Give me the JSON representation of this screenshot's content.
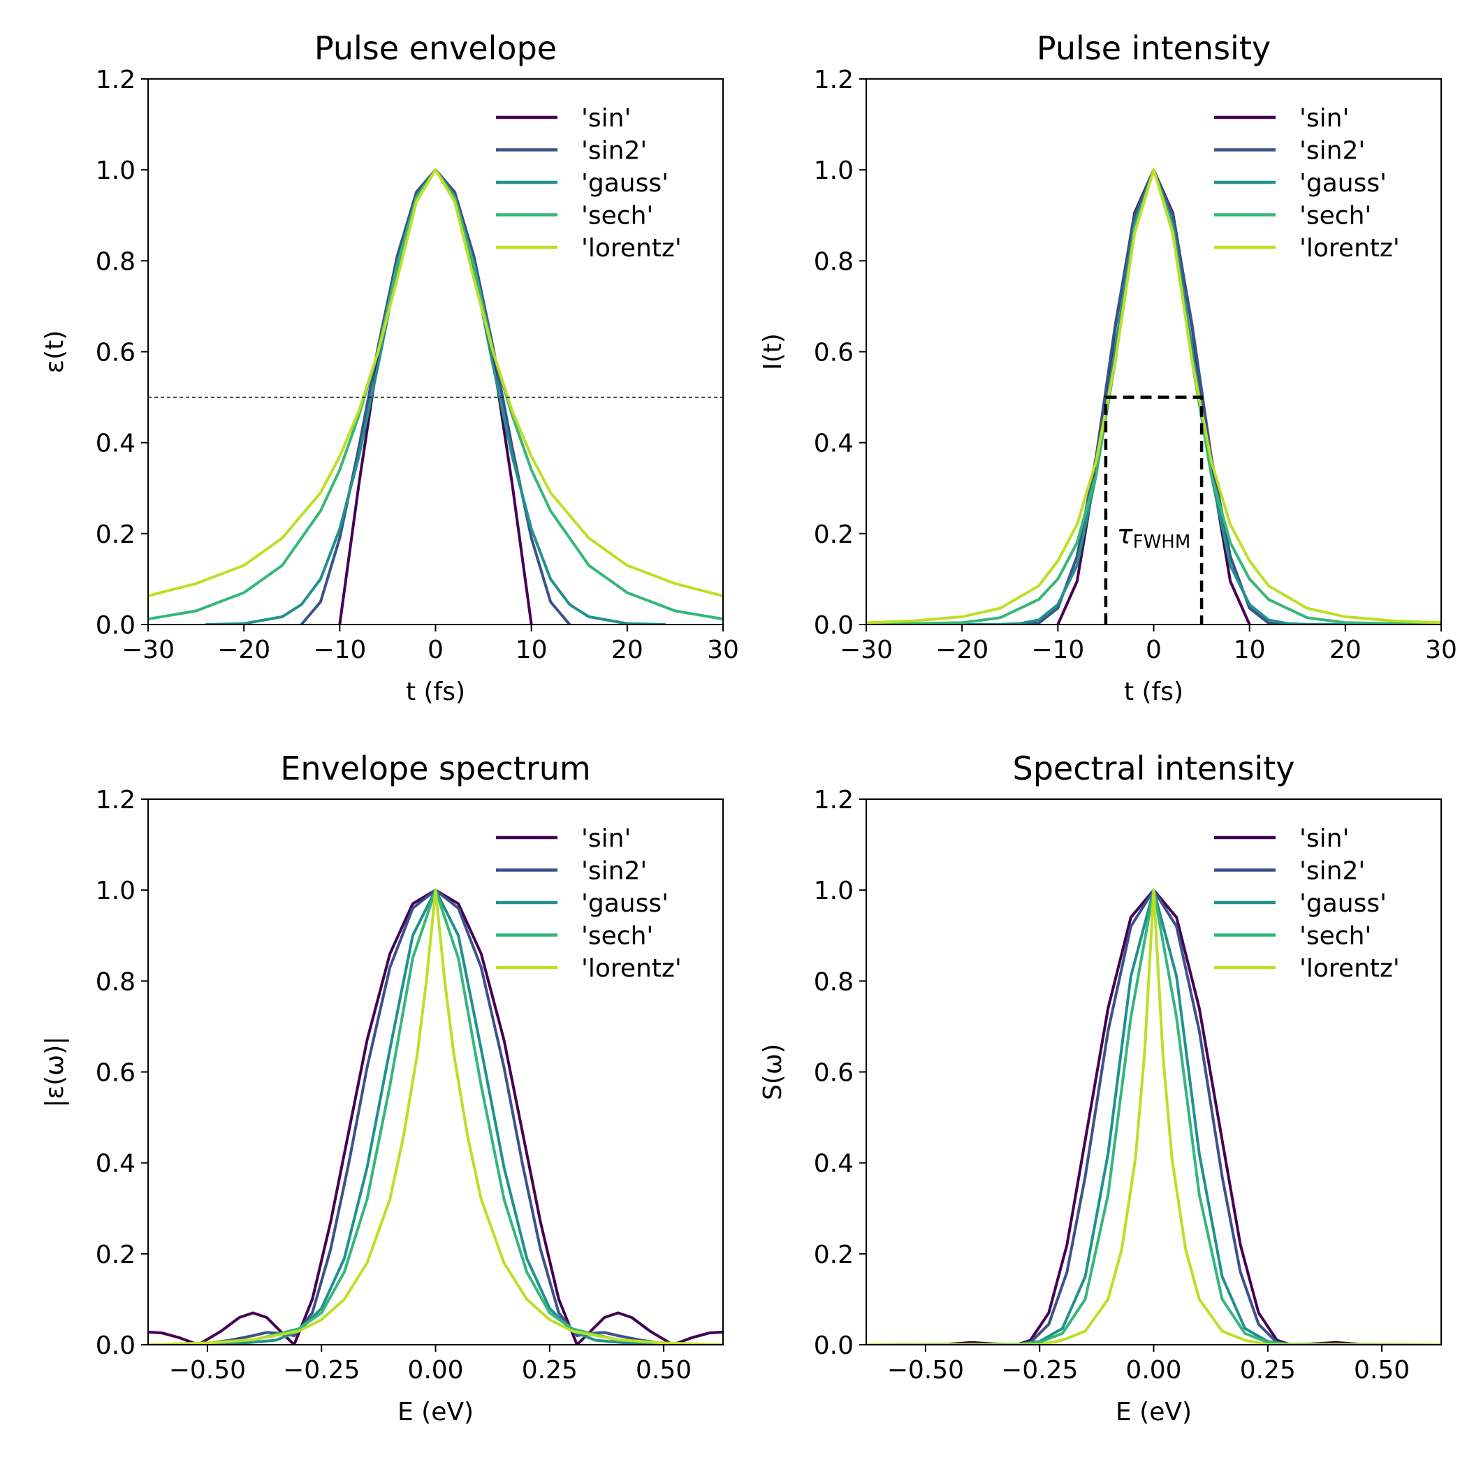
{
  "colors": {
    "sin": "#440154",
    "sin2": "#3b528b",
    "gauss": "#21918c",
    "sech": "#35b779",
    "lorentz": "#bddf26",
    "reference": "#000000"
  },
  "chart_data": [
    {
      "type": "line",
      "title": "Pulse envelope",
      "xlabel": "t (fs)",
      "ylabel": "ε(t)",
      "xlim": [
        -30,
        30
      ],
      "ylim": [
        0,
        1.2
      ],
      "xticks": [
        -30,
        -20,
        -10,
        0,
        10,
        20,
        30
      ],
      "xtick_labels": [
        "−30",
        "−20",
        "−10",
        "0",
        "10",
        "20",
        "30"
      ],
      "yticks": [
        0,
        0.2,
        0.4,
        0.6,
        0.8,
        1.0,
        1.2
      ],
      "ytick_labels": [
        "0.0",
        "0.2",
        "0.4",
        "0.6",
        "0.8",
        "1.0",
        "1.2"
      ],
      "legend": "top-right",
      "grid": false,
      "series": [
        {
          "name": "'sin'",
          "key": "sin",
          "x": [
            -10,
            -8,
            -6,
            -4,
            -2,
            0,
            2,
            4,
            6,
            8,
            10
          ],
          "y": [
            0,
            0.309,
            0.588,
            0.809,
            0.951,
            1,
            0.951,
            0.809,
            0.588,
            0.309,
            0
          ]
        },
        {
          "name": "'sin2'",
          "key": "sin2",
          "x": [
            -14,
            -12,
            -10,
            -8,
            -6,
            -4,
            -2,
            0,
            2,
            4,
            6,
            8,
            10,
            12,
            14
          ],
          "y": [
            0,
            0.05,
            0.19,
            0.39,
            0.61,
            0.81,
            0.95,
            1,
            0.95,
            0.81,
            0.61,
            0.39,
            0.19,
            0.05,
            0
          ]
        },
        {
          "name": "'gauss'",
          "key": "gauss",
          "x": [
            -24,
            -20,
            -16,
            -14,
            -12,
            -10,
            -8,
            -6,
            -4,
            -2,
            0,
            2,
            4,
            6,
            8,
            10,
            12,
            14,
            16,
            20,
            24
          ],
          "y": [
            0.0,
            0.002,
            0.017,
            0.044,
            0.1,
            0.21,
            0.37,
            0.57,
            0.78,
            0.94,
            1,
            0.94,
            0.78,
            0.57,
            0.37,
            0.21,
            0.1,
            0.044,
            0.017,
            0.002,
            0.0
          ]
        },
        {
          "name": "'sech'",
          "key": "sech",
          "x": [
            -30,
            -25,
            -20,
            -16,
            -12,
            -10,
            -8,
            -6,
            -4,
            -2,
            0,
            2,
            4,
            6,
            8,
            10,
            12,
            16,
            20,
            25,
            30
          ],
          "y": [
            0.012,
            0.03,
            0.07,
            0.13,
            0.25,
            0.34,
            0.46,
            0.6,
            0.79,
            0.94,
            1,
            0.94,
            0.79,
            0.6,
            0.46,
            0.34,
            0.25,
            0.13,
            0.07,
            0.03,
            0.012
          ]
        },
        {
          "name": "'lorentz'",
          "key": "lorentz",
          "x": [
            -30,
            -25,
            -20,
            -16,
            -12,
            -10,
            -8,
            -6,
            -4,
            -2,
            0,
            2,
            4,
            6,
            8,
            10,
            12,
            16,
            20,
            25,
            30
          ],
          "y": [
            0.063,
            0.09,
            0.13,
            0.19,
            0.29,
            0.37,
            0.47,
            0.6,
            0.76,
            0.93,
            1,
            0.93,
            0.76,
            0.6,
            0.47,
            0.37,
            0.29,
            0.19,
            0.13,
            0.09,
            0.063
          ]
        }
      ],
      "hline": {
        "y": 0.5,
        "style": "dashed thin"
      }
    },
    {
      "type": "line",
      "title": "Pulse intensity",
      "xlabel": "t (fs)",
      "ylabel": "I(t)",
      "xlim": [
        -30,
        30
      ],
      "ylim": [
        0,
        1.2
      ],
      "xticks": [
        -30,
        -20,
        -10,
        0,
        10,
        20,
        30
      ],
      "xtick_labels": [
        "−30",
        "−20",
        "−10",
        "0",
        "10",
        "20",
        "30"
      ],
      "yticks": [
        0,
        0.2,
        0.4,
        0.6,
        0.8,
        1.0,
        1.2
      ],
      "ytick_labels": [
        "0.0",
        "0.2",
        "0.4",
        "0.6",
        "0.8",
        "1.0",
        "1.2"
      ],
      "legend": "top-right",
      "grid": false,
      "series": [
        {
          "name": "'sin'",
          "key": "sin",
          "x": [
            -10,
            -8,
            -6,
            -4,
            -2,
            0,
            2,
            4,
            6,
            8,
            10
          ],
          "y": [
            0,
            0.095,
            0.346,
            0.655,
            0.905,
            1,
            0.905,
            0.655,
            0.346,
            0.095,
            0
          ]
        },
        {
          "name": "'sin2'",
          "key": "sin2",
          "x": [
            -14,
            -12,
            -10,
            -8,
            -6,
            -4,
            -2,
            0,
            2,
            4,
            6,
            8,
            10,
            12,
            14
          ],
          "y": [
            0,
            0.003,
            0.036,
            0.15,
            0.37,
            0.66,
            0.9,
            1,
            0.9,
            0.66,
            0.37,
            0.15,
            0.036,
            0.003,
            0
          ]
        },
        {
          "name": "'gauss'",
          "key": "gauss",
          "x": [
            -24,
            -16,
            -14,
            -12,
            -10,
            -8,
            -6,
            -4,
            -2,
            0,
            2,
            4,
            6,
            8,
            10,
            12,
            14,
            16,
            24
          ],
          "y": [
            0,
            0.0003,
            0.002,
            0.01,
            0.044,
            0.13,
            0.33,
            0.61,
            0.88,
            1,
            0.88,
            0.61,
            0.33,
            0.13,
            0.044,
            0.01,
            0.002,
            0.0003,
            0
          ]
        },
        {
          "name": "'sech'",
          "key": "sech",
          "x": [
            -30,
            -20,
            -16,
            -12,
            -10,
            -8,
            -6,
            -4,
            -2,
            0,
            2,
            4,
            6,
            8,
            10,
            12,
            16,
            20,
            30
          ],
          "y": [
            0.0002,
            0.004,
            0.015,
            0.055,
            0.1,
            0.18,
            0.33,
            0.58,
            0.87,
            1,
            0.87,
            0.58,
            0.33,
            0.18,
            0.1,
            0.055,
            0.015,
            0.004,
            0.0002
          ]
        },
        {
          "name": "'lorentz'",
          "key": "lorentz",
          "x": [
            -30,
            -25,
            -20,
            -16,
            -12,
            -10,
            -8,
            -6,
            -4,
            -2,
            0,
            2,
            4,
            6,
            8,
            10,
            12,
            16,
            20,
            25,
            30
          ],
          "y": [
            0.004,
            0.008,
            0.017,
            0.036,
            0.085,
            0.14,
            0.22,
            0.36,
            0.58,
            0.86,
            1,
            0.86,
            0.58,
            0.36,
            0.22,
            0.14,
            0.085,
            0.036,
            0.017,
            0.008,
            0.004
          ]
        }
      ],
      "fwhm_box": {
        "x1": -5,
        "x2": 5,
        "y": 0.5,
        "label": "τ",
        "label_sub": "FWHM"
      }
    },
    {
      "type": "line",
      "title": "Envelope spectrum",
      "xlabel": "E (eV)",
      "ylabel": "|ε(ω)|",
      "xlim": [
        -0.63,
        0.63
      ],
      "ylim": [
        0,
        1.2
      ],
      "xticks": [
        -0.5,
        -0.25,
        0,
        0.25,
        0.5
      ],
      "xtick_labels": [
        "−0.50",
        "−0.25",
        "0.00",
        "0.25",
        "0.50"
      ],
      "yticks": [
        0,
        0.2,
        0.4,
        0.6,
        0.8,
        1.0,
        1.2
      ],
      "ytick_labels": [
        "0.0",
        "0.2",
        "0.4",
        "0.6",
        "0.8",
        "1.0",
        "1.2"
      ],
      "legend": "top-right",
      "grid": false,
      "series": [
        {
          "name": "'sin'",
          "key": "sin",
          "x": [
            -0.63,
            -0.6,
            -0.56,
            -0.52,
            -0.47,
            -0.43,
            -0.4,
            -0.37,
            -0.34,
            -0.31,
            -0.27,
            -0.23,
            -0.19,
            -0.15,
            -0.1,
            -0.05,
            0,
            0.05,
            0.1,
            0.15,
            0.19,
            0.23,
            0.27,
            0.31,
            0.34,
            0.37,
            0.4,
            0.43,
            0.47,
            0.52,
            0.56,
            0.6,
            0.63
          ],
          "y": [
            0.028,
            0.026,
            0.015,
            0.0,
            0.03,
            0.06,
            0.07,
            0.06,
            0.03,
            0.0,
            0.1,
            0.27,
            0.47,
            0.67,
            0.86,
            0.97,
            1,
            0.97,
            0.86,
            0.67,
            0.47,
            0.27,
            0.1,
            0.0,
            0.03,
            0.06,
            0.07,
            0.06,
            0.03,
            0.0,
            0.015,
            0.026,
            0.028
          ]
        },
        {
          "name": "'sin2'",
          "key": "sin2",
          "x": [
            -0.63,
            -0.5,
            -0.45,
            -0.4,
            -0.37,
            -0.34,
            -0.31,
            -0.27,
            -0.23,
            -0.19,
            -0.15,
            -0.1,
            -0.05,
            0,
            0.05,
            0.1,
            0.15,
            0.19,
            0.23,
            0.27,
            0.31,
            0.34,
            0.37,
            0.4,
            0.45,
            0.5,
            0.63
          ],
          "y": [
            0.0,
            0.003,
            0.01,
            0.02,
            0.027,
            0.025,
            0.02,
            0.07,
            0.21,
            0.4,
            0.61,
            0.83,
            0.96,
            1,
            0.96,
            0.83,
            0.61,
            0.4,
            0.21,
            0.07,
            0.02,
            0.025,
            0.027,
            0.02,
            0.01,
            0.003,
            0.0
          ]
        },
        {
          "name": "'gauss'",
          "key": "gauss",
          "x": [
            -0.63,
            -0.45,
            -0.35,
            -0.3,
            -0.25,
            -0.2,
            -0.15,
            -0.1,
            -0.05,
            0,
            0.05,
            0.1,
            0.15,
            0.2,
            0.25,
            0.3,
            0.35,
            0.45,
            0.63
          ],
          "y": [
            0.0,
            0.001,
            0.01,
            0.03,
            0.08,
            0.19,
            0.39,
            0.65,
            0.9,
            1,
            0.9,
            0.65,
            0.39,
            0.19,
            0.08,
            0.03,
            0.01,
            0.001,
            0.0
          ]
        },
        {
          "name": "'sech'",
          "key": "sech",
          "x": [
            -0.63,
            -0.5,
            -0.4,
            -0.3,
            -0.25,
            -0.2,
            -0.15,
            -0.1,
            -0.05,
            0,
            0.05,
            0.1,
            0.15,
            0.2,
            0.25,
            0.3,
            0.4,
            0.5,
            0.63
          ],
          "y": [
            0.0,
            0.003,
            0.01,
            0.035,
            0.07,
            0.16,
            0.32,
            0.57,
            0.85,
            1,
            0.85,
            0.57,
            0.32,
            0.16,
            0.07,
            0.035,
            0.01,
            0.003,
            0.0
          ]
        },
        {
          "name": "'lorentz'",
          "key": "lorentz",
          "x": [
            -0.63,
            -0.5,
            -0.4,
            -0.3,
            -0.25,
            -0.2,
            -0.15,
            -0.1,
            -0.07,
            -0.04,
            -0.02,
            0,
            0.02,
            0.04,
            0.07,
            0.1,
            0.15,
            0.2,
            0.25,
            0.3,
            0.4,
            0.5,
            0.63
          ],
          "y": [
            0.0,
            0.004,
            0.011,
            0.03,
            0.055,
            0.1,
            0.18,
            0.32,
            0.46,
            0.64,
            0.8,
            1,
            0.8,
            0.64,
            0.46,
            0.32,
            0.18,
            0.1,
            0.055,
            0.03,
            0.011,
            0.004,
            0.0
          ]
        }
      ]
    },
    {
      "type": "line",
      "title": "Spectral intensity",
      "xlabel": "E (eV)",
      "ylabel": "S(ω)",
      "xlim": [
        -0.63,
        0.63
      ],
      "ylim": [
        0,
        1.2
      ],
      "xticks": [
        -0.5,
        -0.25,
        0,
        0.25,
        0.5
      ],
      "xtick_labels": [
        "−0.50",
        "−0.25",
        "0.00",
        "0.25",
        "0.50"
      ],
      "yticks": [
        0,
        0.2,
        0.4,
        0.6,
        0.8,
        1.0,
        1.2
      ],
      "ytick_labels": [
        "0.0",
        "0.2",
        "0.4",
        "0.6",
        "0.8",
        "1.0",
        "1.2"
      ],
      "legend": "top-right",
      "grid": false,
      "series": [
        {
          "name": "'sin'",
          "key": "sin",
          "x": [
            -0.63,
            -0.45,
            -0.4,
            -0.35,
            -0.3,
            -0.27,
            -0.23,
            -0.19,
            -0.15,
            -0.1,
            -0.05,
            0,
            0.05,
            0.1,
            0.15,
            0.19,
            0.23,
            0.27,
            0.3,
            0.35,
            0.4,
            0.45,
            0.63
          ],
          "y": [
            0.0,
            0.001,
            0.005,
            0.002,
            0.0,
            0.01,
            0.07,
            0.22,
            0.45,
            0.74,
            0.94,
            1,
            0.94,
            0.74,
            0.45,
            0.22,
            0.07,
            0.01,
            0.0,
            0.002,
            0.005,
            0.001,
            0.0
          ]
        },
        {
          "name": "'sin2'",
          "key": "sin2",
          "x": [
            -0.63,
            -0.3,
            -0.27,
            -0.23,
            -0.19,
            -0.15,
            -0.1,
            -0.05,
            0,
            0.05,
            0.1,
            0.15,
            0.19,
            0.23,
            0.27,
            0.3,
            0.63
          ],
          "y": [
            0.0,
            0.0,
            0.005,
            0.045,
            0.16,
            0.37,
            0.69,
            0.92,
            1,
            0.92,
            0.69,
            0.37,
            0.16,
            0.045,
            0.005,
            0.0,
            0.0
          ]
        },
        {
          "name": "'gauss'",
          "key": "gauss",
          "x": [
            -0.63,
            -0.3,
            -0.25,
            -0.2,
            -0.15,
            -0.1,
            -0.05,
            0,
            0.05,
            0.1,
            0.15,
            0.2,
            0.25,
            0.3,
            0.63
          ],
          "y": [
            0.0,
            0.001,
            0.007,
            0.036,
            0.15,
            0.42,
            0.81,
            1,
            0.81,
            0.42,
            0.15,
            0.036,
            0.007,
            0.001,
            0.0
          ]
        },
        {
          "name": "'sech'",
          "key": "sech",
          "x": [
            -0.63,
            -0.3,
            -0.25,
            -0.2,
            -0.15,
            -0.1,
            -0.05,
            0,
            0.05,
            0.1,
            0.15,
            0.2,
            0.25,
            0.3,
            0.63
          ],
          "y": [
            0.0,
            0.001,
            0.005,
            0.025,
            0.1,
            0.33,
            0.72,
            1,
            0.72,
            0.33,
            0.1,
            0.025,
            0.005,
            0.001,
            0.0
          ]
        },
        {
          "name": "'lorentz'",
          "key": "lorentz",
          "x": [
            -0.63,
            -0.25,
            -0.2,
            -0.15,
            -0.1,
            -0.07,
            -0.04,
            -0.02,
            0,
            0.02,
            0.04,
            0.07,
            0.1,
            0.15,
            0.2,
            0.25,
            0.63
          ],
          "y": [
            0.0,
            0.0,
            0.01,
            0.03,
            0.1,
            0.21,
            0.41,
            0.64,
            1,
            0.64,
            0.41,
            0.21,
            0.1,
            0.03,
            0.01,
            0.0,
            0.0
          ]
        }
      ]
    }
  ]
}
